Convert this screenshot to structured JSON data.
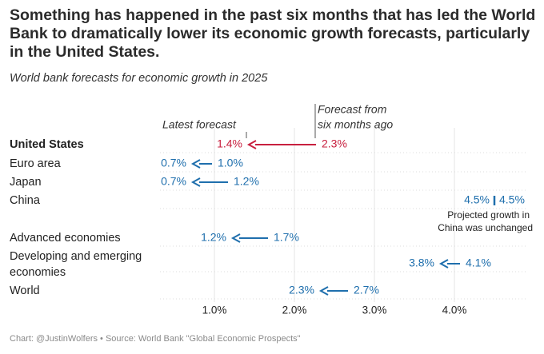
{
  "header": {
    "title": "Something has happened in the past six months that has led the World Bank to dramatically lower its economic growth forecasts, particularly in the United States.",
    "subtitle": "World bank forecasts for economic growth in 2025"
  },
  "footer": {
    "credit": "Chart: @JustinWolfers • Source: World Bank \"Global Economic Prospects\""
  },
  "colors": {
    "highlight": "#c8203f",
    "default": "#1f6fad"
  },
  "chart_data": {
    "type": "dumbbell-arrow",
    "series": [
      {
        "name": "Latest forecast"
      },
      {
        "name": "Forecast from six months ago"
      }
    ],
    "annotations": {
      "latest": "Latest forecast",
      "prior_line1": "Forecast from",
      "prior_line2": "six months ago",
      "china_note_line1": "Projected growth in",
      "china_note_line2": "China was unchanged"
    },
    "x_ticks": [
      {
        "value": 1.0,
        "label": "1.0%"
      },
      {
        "value": 2.0,
        "label": "2.0%"
      },
      {
        "value": 3.0,
        "label": "3.0%"
      },
      {
        "value": 4.0,
        "label": "4.0%"
      }
    ],
    "xlim": [
      0.0,
      4.5
    ],
    "rows": [
      {
        "label_lines": [
          "United States"
        ],
        "latest": 1.4,
        "prior": 2.3,
        "latest_label": "1.4%",
        "prior_label": "2.3%",
        "highlight": true
      },
      {
        "label_lines": [
          "Euro area"
        ],
        "latest": 0.7,
        "prior": 1.0,
        "latest_label": "0.7%",
        "prior_label": "1.0%",
        "highlight": false
      },
      {
        "label_lines": [
          "Japan"
        ],
        "latest": 0.7,
        "prior": 1.2,
        "latest_label": "0.7%",
        "prior_label": "1.2%",
        "highlight": false
      },
      {
        "label_lines": [
          "China"
        ],
        "latest": 4.5,
        "prior": 4.5,
        "latest_label": "4.5%",
        "prior_label": "4.5%",
        "highlight": false
      },
      {
        "label_lines": [
          "Advanced economies"
        ],
        "latest": 1.2,
        "prior": 1.7,
        "latest_label": "1.2%",
        "prior_label": "1.7%",
        "highlight": false
      },
      {
        "label_lines": [
          "Developing and emerging",
          "economies"
        ],
        "latest": 3.8,
        "prior": 4.1,
        "latest_label": "3.8%",
        "prior_label": "4.1%",
        "highlight": false
      },
      {
        "label_lines": [
          "World"
        ],
        "latest": 2.3,
        "prior": 2.7,
        "latest_label": "2.3%",
        "prior_label": "2.7%",
        "highlight": false
      }
    ]
  }
}
